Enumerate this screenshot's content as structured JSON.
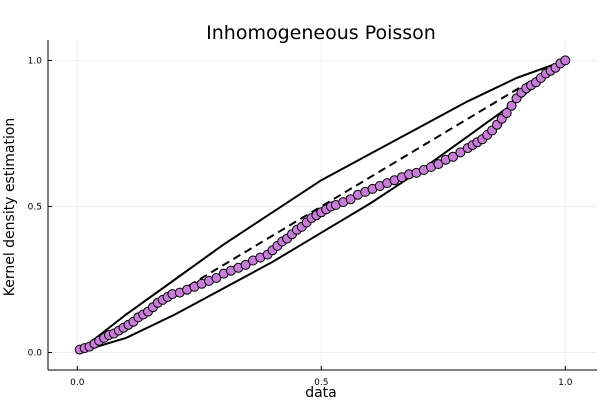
{
  "chart_data": {
    "type": "scatter",
    "title": "Inhomogeneous Poisson",
    "xlabel": "data",
    "ylabel": "Kernel density estimation",
    "xlim": [
      -0.06,
      1.065
    ],
    "ylim": [
      -0.06,
      1.07
    ],
    "xticks": [
      0.0,
      0.5,
      1.0
    ],
    "xtick_labels": [
      "0.0",
      "0.5",
      "1.0"
    ],
    "yticks": [
      0.0,
      0.5,
      1.0
    ],
    "ytick_labels": [
      "0.0",
      "0.5",
      "1.0"
    ],
    "grid": true,
    "legend": "none",
    "colors": {
      "points": "#c87ed8",
      "point_edge": "#000000",
      "lines": "#000000",
      "grid": "#eeeeee"
    },
    "reference_line": {
      "style": "dashed",
      "points": [
        [
          0.0,
          0.0
        ],
        [
          1.0,
          1.0
        ]
      ]
    },
    "confidence_band": {
      "style": "solid",
      "upper": [
        [
          0.0,
          0.0
        ],
        [
          0.1,
          0.13
        ],
        [
          0.2,
          0.25
        ],
        [
          0.3,
          0.37
        ],
        [
          0.4,
          0.48
        ],
        [
          0.5,
          0.59
        ],
        [
          0.6,
          0.68
        ],
        [
          0.7,
          0.77
        ],
        [
          0.8,
          0.86
        ],
        [
          0.9,
          0.94
        ],
        [
          1.0,
          1.0
        ]
      ],
      "lower": [
        [
          0.0,
          0.0
        ],
        [
          0.1,
          0.05
        ],
        [
          0.2,
          0.13
        ],
        [
          0.3,
          0.22
        ],
        [
          0.4,
          0.31
        ],
        [
          0.5,
          0.41
        ],
        [
          0.6,
          0.51
        ],
        [
          0.7,
          0.62
        ],
        [
          0.8,
          0.74
        ],
        [
          0.9,
          0.86
        ],
        [
          1.0,
          1.0
        ]
      ]
    },
    "series": [
      {
        "points": [
          [
            0.005,
            0.01
          ],
          [
            0.015,
            0.015
          ],
          [
            0.025,
            0.02
          ],
          [
            0.035,
            0.03
          ],
          [
            0.045,
            0.04
          ],
          [
            0.055,
            0.05
          ],
          [
            0.065,
            0.06
          ],
          [
            0.075,
            0.065
          ],
          [
            0.085,
            0.075
          ],
          [
            0.095,
            0.085
          ],
          [
            0.105,
            0.095
          ],
          [
            0.115,
            0.105
          ],
          [
            0.125,
            0.12
          ],
          [
            0.135,
            0.13
          ],
          [
            0.145,
            0.14
          ],
          [
            0.155,
            0.155
          ],
          [
            0.165,
            0.17
          ],
          [
            0.175,
            0.18
          ],
          [
            0.185,
            0.19
          ],
          [
            0.195,
            0.2
          ],
          [
            0.21,
            0.205
          ],
          [
            0.225,
            0.215
          ],
          [
            0.24,
            0.225
          ],
          [
            0.255,
            0.235
          ],
          [
            0.27,
            0.245
          ],
          [
            0.285,
            0.255
          ],
          [
            0.3,
            0.27
          ],
          [
            0.315,
            0.28
          ],
          [
            0.33,
            0.29
          ],
          [
            0.345,
            0.3
          ],
          [
            0.36,
            0.315
          ],
          [
            0.375,
            0.325
          ],
          [
            0.39,
            0.335
          ],
          [
            0.4,
            0.35
          ],
          [
            0.41,
            0.365
          ],
          [
            0.42,
            0.38
          ],
          [
            0.43,
            0.39
          ],
          [
            0.44,
            0.405
          ],
          [
            0.45,
            0.42
          ],
          [
            0.46,
            0.43
          ],
          [
            0.47,
            0.445
          ],
          [
            0.48,
            0.46
          ],
          [
            0.49,
            0.47
          ],
          [
            0.5,
            0.48
          ],
          [
            0.51,
            0.49
          ],
          [
            0.52,
            0.5
          ],
          [
            0.53,
            0.505
          ],
          [
            0.545,
            0.515
          ],
          [
            0.56,
            0.525
          ],
          [
            0.575,
            0.54
          ],
          [
            0.59,
            0.55
          ],
          [
            0.605,
            0.56
          ],
          [
            0.62,
            0.57
          ],
          [
            0.635,
            0.58
          ],
          [
            0.65,
            0.59
          ],
          [
            0.665,
            0.6
          ],
          [
            0.68,
            0.61
          ],
          [
            0.695,
            0.615
          ],
          [
            0.71,
            0.625
          ],
          [
            0.725,
            0.635
          ],
          [
            0.74,
            0.645
          ],
          [
            0.755,
            0.66
          ],
          [
            0.77,
            0.67
          ],
          [
            0.785,
            0.685
          ],
          [
            0.8,
            0.7
          ],
          [
            0.81,
            0.71
          ],
          [
            0.82,
            0.72
          ],
          [
            0.83,
            0.73
          ],
          [
            0.84,
            0.745
          ],
          [
            0.85,
            0.76
          ],
          [
            0.86,
            0.78
          ],
          [
            0.87,
            0.8
          ],
          [
            0.88,
            0.82
          ],
          [
            0.89,
            0.845
          ],
          [
            0.9,
            0.87
          ],
          [
            0.91,
            0.89
          ],
          [
            0.92,
            0.905
          ],
          [
            0.93,
            0.915
          ],
          [
            0.94,
            0.925
          ],
          [
            0.95,
            0.94
          ],
          [
            0.96,
            0.955
          ],
          [
            0.97,
            0.965
          ],
          [
            0.98,
            0.975
          ],
          [
            0.99,
            0.99
          ],
          [
            1.0,
            1.0
          ]
        ]
      }
    ]
  }
}
